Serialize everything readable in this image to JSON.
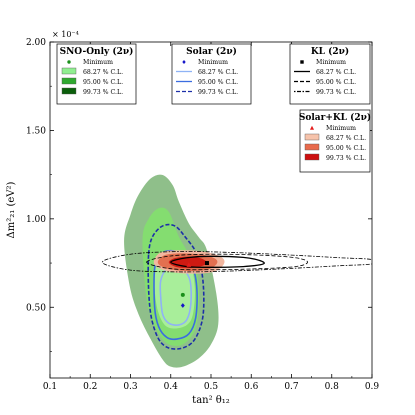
{
  "chart_data": {
    "type": "contour",
    "xlabel": "tan² θ₁₂",
    "ylabel": "Δm²₂₁ (eV²)",
    "y_multiplier_label": "× 10⁻⁴",
    "xlim": [
      0.1,
      0.9
    ],
    "ylim": [
      0.1,
      2.0
    ],
    "x_ticks": [
      "0.1",
      "0.2",
      "0.3",
      "0.4",
      "0.5",
      "0.6",
      "0.7",
      "0.8",
      "0.9"
    ],
    "y_ticks": [
      "0.50",
      "1.00",
      "1.50",
      "2.00"
    ],
    "y_tick_values": [
      0.5,
      1.0,
      1.5,
      2.0
    ],
    "x_tick_values": [
      0.1,
      0.2,
      0.3,
      0.4,
      0.5,
      0.6,
      0.7,
      0.8,
      0.9
    ],
    "confidence_levels": [
      "68.27 % C.L.",
      "95.00 % C.L.",
      "99.73 % C.L."
    ],
    "minimum_label": "Minimum",
    "legends": [
      {
        "title": "SNO-Only (2ν)",
        "marker": "dot",
        "marker_color": "#1a8f1a",
        "placement": "top-left",
        "styles": [
          {
            "kind": "patch",
            "color": "#90ee90"
          },
          {
            "kind": "patch",
            "color": "#2fa82f"
          },
          {
            "kind": "patch",
            "color": "#0b5e0b"
          }
        ]
      },
      {
        "title": "Solar (2ν)",
        "marker": "diamond",
        "marker_color": "#1515c8",
        "placement": "top-center",
        "styles": [
          {
            "kind": "line",
            "color": "#8fb3f5",
            "dash": ""
          },
          {
            "kind": "line",
            "color": "#3b6de0",
            "dash": ""
          },
          {
            "kind": "line",
            "color": "#1c2fa8",
            "dash": "4,2"
          }
        ]
      },
      {
        "title": "KL (2ν)",
        "marker": "square",
        "marker_color": "#000000",
        "placement": "top-right",
        "styles": [
          {
            "kind": "line",
            "color": "#000000",
            "dash": ""
          },
          {
            "kind": "line",
            "color": "#000000",
            "dash": "4,2"
          },
          {
            "kind": "line",
            "color": "#000000",
            "dash": "1.5,1.5,4,1.5"
          }
        ]
      },
      {
        "title": "Solar+KL (2ν)",
        "marker": "triangle",
        "marker_color": "#e41a1a",
        "placement": "right",
        "styles": [
          {
            "kind": "patch",
            "color": "#f6c3ab"
          },
          {
            "kind": "patch",
            "color": "#e86a4c"
          },
          {
            "kind": "patch",
            "color": "#cc0f0f"
          }
        ]
      }
    ],
    "minima": [
      {
        "series": "SNO-Only",
        "x": 0.43,
        "y": 0.57,
        "color": "#1a8f1a",
        "marker": "dot"
      },
      {
        "series": "Solar",
        "x": 0.43,
        "y": 0.51,
        "color": "#1515c8",
        "marker": "diamond"
      },
      {
        "series": "KL",
        "x": 0.49,
        "y": 0.75,
        "color": "#000000",
        "marker": "square"
      },
      {
        "series": "Solar+KL",
        "x": 0.445,
        "y": 0.74,
        "color": "#e41a1a",
        "marker": "triangle"
      }
    ],
    "contours": {
      "sno": [
        {
          "cl": "99.73",
          "color": "#8fbf8a",
          "points": [
            [
              0.284,
              0.876
            ],
            [
              0.3,
              1.024
            ],
            [
              0.32,
              1.136
            ],
            [
              0.35,
              1.228
            ],
            [
              0.38,
              1.248
            ],
            [
              0.405,
              1.19
            ],
            [
              0.42,
              1.098
            ],
            [
              0.445,
              0.974
            ],
            [
              0.47,
              0.895
            ],
            [
              0.49,
              0.822
            ],
            [
              0.513,
              0.58
            ],
            [
              0.518,
              0.404
            ],
            [
              0.5,
              0.29
            ],
            [
              0.47,
              0.212
            ],
            [
              0.43,
              0.164
            ],
            [
              0.4,
              0.164
            ],
            [
              0.38,
              0.204
            ],
            [
              0.35,
              0.32
            ],
            [
              0.32,
              0.46
            ],
            [
              0.298,
              0.62
            ],
            [
              0.284,
              0.876
            ]
          ]
        },
        {
          "cl": "95.00",
          "color": "#84dd70",
          "points": [
            [
              0.33,
              0.89
            ],
            [
              0.345,
              1.0
            ],
            [
              0.37,
              1.06
            ],
            [
              0.395,
              1.04
            ],
            [
              0.42,
              0.9
            ],
            [
              0.44,
              0.82
            ],
            [
              0.465,
              0.7
            ],
            [
              0.47,
              0.52
            ],
            [
              0.46,
              0.37
            ],
            [
              0.43,
              0.29
            ],
            [
              0.395,
              0.29
            ],
            [
              0.37,
              0.35
            ],
            [
              0.35,
              0.45
            ],
            [
              0.337,
              0.6
            ],
            [
              0.33,
              0.89
            ]
          ]
        },
        {
          "cl": "68.27",
          "color": "#a8ee9a",
          "points": [
            [
              0.36,
              0.7
            ],
            [
              0.375,
              0.78
            ],
            [
              0.4,
              0.8
            ],
            [
              0.42,
              0.78
            ],
            [
              0.45,
              0.73
            ],
            [
              0.46,
              0.6
            ],
            [
              0.455,
              0.46
            ],
            [
              0.44,
              0.4
            ],
            [
              0.41,
              0.38
            ],
            [
              0.385,
              0.4
            ],
            [
              0.368,
              0.48
            ],
            [
              0.36,
              0.6
            ],
            [
              0.36,
              0.7
            ]
          ]
        }
      ],
      "solar": [
        {
          "cl": "99.73",
          "color": "#1c2fa8",
          "dash": "4,2",
          "points": [
            [
              0.345,
              0.8
            ],
            [
              0.355,
              0.9
            ],
            [
              0.38,
              0.96
            ],
            [
              0.41,
              0.96
            ],
            [
              0.435,
              0.9
            ],
            [
              0.465,
              0.8
            ],
            [
              0.48,
              0.65
            ],
            [
              0.48,
              0.45
            ],
            [
              0.46,
              0.32
            ],
            [
              0.43,
              0.27
            ],
            [
              0.395,
              0.27
            ],
            [
              0.37,
              0.32
            ],
            [
              0.352,
              0.44
            ],
            [
              0.345,
              0.6
            ],
            [
              0.345,
              0.8
            ]
          ]
        },
        {
          "cl": "95.00",
          "color": "#3b6de0",
          "dash": "",
          "points": [
            [
              0.36,
              0.72
            ],
            [
              0.375,
              0.8
            ],
            [
              0.4,
              0.82
            ],
            [
              0.425,
              0.8
            ],
            [
              0.455,
              0.72
            ],
            [
              0.465,
              0.6
            ],
            [
              0.462,
              0.44
            ],
            [
              0.445,
              0.35
            ],
            [
              0.415,
              0.32
            ],
            [
              0.39,
              0.33
            ],
            [
              0.37,
              0.39
            ],
            [
              0.36,
              0.5
            ],
            [
              0.36,
              0.72
            ]
          ]
        },
        {
          "cl": "68.27",
          "color": "#8fb3f5",
          "dash": "",
          "points": [
            [
              0.375,
              0.65
            ],
            [
              0.39,
              0.72
            ],
            [
              0.41,
              0.74
            ],
            [
              0.43,
              0.72
            ],
            [
              0.448,
              0.65
            ],
            [
              0.45,
              0.52
            ],
            [
              0.44,
              0.43
            ],
            [
              0.42,
              0.4
            ],
            [
              0.395,
              0.41
            ],
            [
              0.38,
              0.46
            ],
            [
              0.375,
              0.56
            ],
            [
              0.375,
              0.65
            ]
          ]
        }
      ],
      "kl": [
        {
          "cl": "99.73",
          "color": "#000000",
          "dash": "1.5,1.5,4,1.5",
          "points": [
            [
              0.23,
              0.755
            ],
            [
              0.3,
              0.8
            ],
            [
              0.42,
              0.815
            ],
            [
              0.55,
              0.81
            ],
            [
              0.7,
              0.795
            ],
            [
              0.82,
              0.78
            ],
            [
              0.9,
              0.77
            ],
            [
              0.9,
              0.745
            ],
            [
              0.82,
              0.735
            ],
            [
              0.7,
              0.72
            ],
            [
              0.55,
              0.705
            ],
            [
              0.42,
              0.7
            ],
            [
              0.3,
              0.71
            ],
            [
              0.23,
              0.755
            ]
          ]
        },
        {
          "cl": "95.00",
          "color": "#000000",
          "dash": "4,2",
          "points": [
            [
              0.34,
              0.755
            ],
            [
              0.4,
              0.79
            ],
            [
              0.5,
              0.8
            ],
            [
              0.62,
              0.795
            ],
            [
              0.71,
              0.78
            ],
            [
              0.74,
              0.755
            ],
            [
              0.71,
              0.73
            ],
            [
              0.62,
              0.718
            ],
            [
              0.5,
              0.712
            ],
            [
              0.4,
              0.718
            ],
            [
              0.34,
              0.755
            ]
          ]
        },
        {
          "cl": "68.27",
          "color": "#000000",
          "dash": "",
          "points": [
            [
              0.4,
              0.755
            ],
            [
              0.44,
              0.78
            ],
            [
              0.5,
              0.788
            ],
            [
              0.58,
              0.782
            ],
            [
              0.62,
              0.765
            ],
            [
              0.63,
              0.745
            ],
            [
              0.58,
              0.73
            ],
            [
              0.5,
              0.726
            ],
            [
              0.44,
              0.73
            ],
            [
              0.4,
              0.755
            ]
          ]
        }
      ],
      "solarkl": [
        {
          "cl": "99.73",
          "color": "#f2b7a0",
          "points": [
            [
              0.358,
              0.76
            ],
            [
              0.375,
              0.81
            ],
            [
              0.42,
              0.822
            ],
            [
              0.48,
              0.815
            ],
            [
              0.525,
              0.785
            ],
            [
              0.532,
              0.745
            ],
            [
              0.505,
              0.7
            ],
            [
              0.45,
              0.69
            ],
            [
              0.4,
              0.7
            ],
            [
              0.368,
              0.725
            ],
            [
              0.358,
              0.76
            ]
          ]
        },
        {
          "cl": "95.00",
          "color": "#e27050",
          "points": [
            [
              0.368,
              0.758
            ],
            [
              0.385,
              0.795
            ],
            [
              0.425,
              0.805
            ],
            [
              0.475,
              0.798
            ],
            [
              0.51,
              0.775
            ],
            [
              0.514,
              0.745
            ],
            [
              0.49,
              0.712
            ],
            [
              0.445,
              0.705
            ],
            [
              0.405,
              0.712
            ],
            [
              0.378,
              0.73
            ],
            [
              0.368,
              0.758
            ]
          ]
        },
        {
          "cl": "68.27",
          "color": "#cf1a12",
          "points": [
            [
              0.395,
              0.755
            ],
            [
              0.41,
              0.778
            ],
            [
              0.44,
              0.786
            ],
            [
              0.47,
              0.78
            ],
            [
              0.488,
              0.76
            ],
            [
              0.485,
              0.74
            ],
            [
              0.46,
              0.725
            ],
            [
              0.43,
              0.722
            ],
            [
              0.408,
              0.732
            ],
            [
              0.395,
              0.755
            ]
          ]
        }
      ]
    }
  }
}
